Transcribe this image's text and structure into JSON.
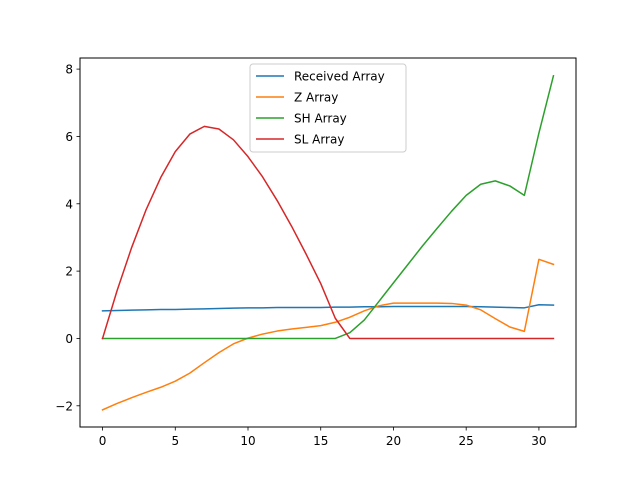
{
  "chart_data": {
    "type": "line",
    "title": "",
    "xlabel": "",
    "ylabel": "",
    "xlim": [
      -1.55,
      32.55
    ],
    "ylim": [
      -2.63,
      8.33
    ],
    "xticks": [
      0,
      5,
      10,
      15,
      20,
      25,
      30
    ],
    "yticks": [
      -2,
      0,
      2,
      4,
      6,
      8
    ],
    "xtick_labels": [
      "0",
      "5",
      "10",
      "15",
      "20",
      "25",
      "30"
    ],
    "ytick_labels": [
      "−2",
      "0",
      "2",
      "4",
      "6",
      "8"
    ],
    "grid": false,
    "legend_position": "upper center",
    "x": [
      0,
      1,
      2,
      3,
      4,
      5,
      6,
      7,
      8,
      9,
      10,
      11,
      12,
      13,
      14,
      15,
      16,
      17,
      18,
      19,
      20,
      21,
      22,
      23,
      24,
      25,
      26,
      27,
      28,
      29,
      30,
      31
    ],
    "series": [
      {
        "name": "Received Array",
        "color": "#1f77b4",
        "values": [
          0.82,
          0.83,
          0.84,
          0.85,
          0.86,
          0.86,
          0.87,
          0.88,
          0.89,
          0.9,
          0.91,
          0.91,
          0.92,
          0.92,
          0.92,
          0.92,
          0.93,
          0.93,
          0.94,
          0.94,
          0.95,
          0.95,
          0.95,
          0.95,
          0.95,
          0.95,
          0.94,
          0.93,
          0.92,
          0.91,
          1.0,
          0.99
        ]
      },
      {
        "name": "Z Array",
        "color": "#ff7f0e",
        "values": [
          -2.12,
          -1.93,
          -1.76,
          -1.6,
          -1.45,
          -1.27,
          -1.03,
          -0.72,
          -0.42,
          -0.16,
          0.01,
          0.13,
          0.22,
          0.28,
          0.33,
          0.38,
          0.48,
          0.63,
          0.82,
          0.97,
          1.05,
          1.05,
          1.05,
          1.05,
          1.04,
          0.99,
          0.85,
          0.59,
          0.34,
          0.21,
          2.35,
          2.2
        ]
      },
      {
        "name": "SH Array",
        "color": "#2ca02c",
        "values": [
          0,
          0,
          0,
          0,
          0,
          0,
          0,
          0,
          0,
          0,
          0,
          0,
          0,
          0,
          0,
          0,
          0,
          0.17,
          0.55,
          1.1,
          1.65,
          2.2,
          2.75,
          3.27,
          3.78,
          4.25,
          4.58,
          4.68,
          4.53,
          4.25,
          6.1,
          7.8
        ]
      },
      {
        "name": "SL Array",
        "color": "#d62728",
        "values": [
          0,
          1.42,
          2.7,
          3.83,
          4.78,
          5.55,
          6.07,
          6.3,
          6.22,
          5.9,
          5.4,
          4.8,
          4.1,
          3.33,
          2.5,
          1.63,
          0.6,
          0,
          0,
          0,
          0,
          0,
          0,
          0,
          0,
          0,
          0,
          0,
          0,
          0,
          0,
          0
        ]
      }
    ]
  }
}
